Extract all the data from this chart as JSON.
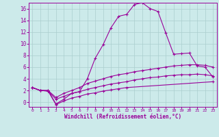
{
  "xlabel": "Windchill (Refroidissement éolien,°C)",
  "background_color": "#cceaea",
  "grid_color": "#aacece",
  "line_color": "#990099",
  "xlim": [
    -0.5,
    23.5
  ],
  "ylim": [
    -0.8,
    17.0
  ],
  "xticks": [
    0,
    1,
    2,
    3,
    4,
    5,
    6,
    7,
    8,
    9,
    10,
    11,
    12,
    13,
    14,
    15,
    16,
    17,
    18,
    19,
    20,
    21,
    22,
    23
  ],
  "yticks": [
    0,
    2,
    4,
    6,
    8,
    10,
    12,
    14,
    16
  ],
  "line1_x": [
    0,
    1,
    2,
    3,
    4,
    5,
    6,
    7,
    8,
    9,
    10,
    11,
    12,
    13,
    14,
    15,
    16,
    17,
    18,
    19,
    20,
    21,
    22,
    23
  ],
  "line1_y": [
    2.5,
    2.0,
    2.0,
    -0.3,
    0.5,
    1.5,
    1.8,
    4.0,
    7.5,
    9.8,
    12.7,
    14.7,
    15.0,
    16.7,
    17.0,
    16.0,
    15.5,
    11.8,
    8.2,
    8.3,
    8.4,
    6.2,
    6.0,
    4.3
  ],
  "line2_x": [
    0,
    1,
    2,
    3,
    4,
    5,
    6,
    7,
    8,
    9,
    10,
    11,
    12,
    13,
    14,
    15,
    16,
    17,
    18,
    19,
    20,
    21,
    22,
    23
  ],
  "line2_y": [
    2.5,
    2.0,
    2.0,
    0.8,
    1.5,
    2.0,
    2.5,
    3.2,
    3.6,
    4.0,
    4.4,
    4.7,
    4.9,
    5.2,
    5.4,
    5.6,
    5.8,
    6.0,
    6.2,
    6.3,
    6.4,
    6.4,
    6.3,
    6.0
  ],
  "line3_x": [
    0,
    1,
    2,
    3,
    4,
    5,
    6,
    7,
    8,
    9,
    10,
    11,
    12,
    13,
    14,
    15,
    16,
    17,
    18,
    19,
    20,
    21,
    22,
    23
  ],
  "line3_y": [
    2.5,
    2.0,
    1.9,
    0.5,
    1.0,
    1.5,
    1.8,
    2.2,
    2.5,
    2.8,
    3.1,
    3.3,
    3.5,
    3.8,
    4.0,
    4.2,
    4.3,
    4.5,
    4.6,
    4.7,
    4.7,
    4.8,
    4.7,
    4.5
  ],
  "line4_x": [
    0,
    1,
    2,
    3,
    4,
    5,
    6,
    7,
    8,
    9,
    10,
    11,
    12,
    23
  ],
  "line4_y": [
    2.5,
    2.0,
    1.9,
    -0.4,
    0.2,
    0.7,
    1.0,
    1.4,
    1.6,
    1.9,
    2.1,
    2.3,
    2.5,
    3.5
  ]
}
